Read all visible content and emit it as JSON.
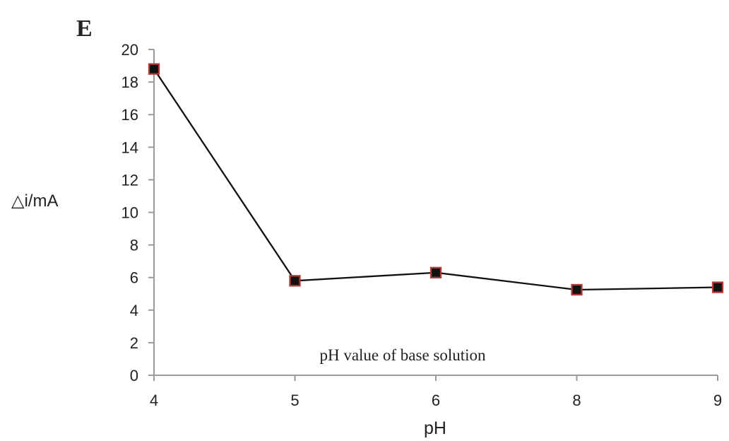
{
  "chart_data": {
    "type": "line",
    "panel_label": "E",
    "annotation": "pH value of base solution",
    "xlabel": "pH",
    "ylabel": "△i/mA",
    "categories": [
      "4",
      "5",
      "6",
      "8",
      "9"
    ],
    "series": [
      {
        "values": [
          18.8,
          5.8,
          6.3,
          5.25,
          5.4
        ]
      }
    ],
    "ylim": [
      0,
      20
    ],
    "yticks": [
      0,
      2,
      4,
      6,
      8,
      10,
      12,
      14,
      16,
      18,
      20
    ],
    "grid": false,
    "legend": "none",
    "colors": {
      "line": "#111111",
      "marker_fill": "#111111",
      "marker_stroke": "#b23a3a",
      "axis": "#9a9a9a",
      "text": "#222222"
    }
  }
}
